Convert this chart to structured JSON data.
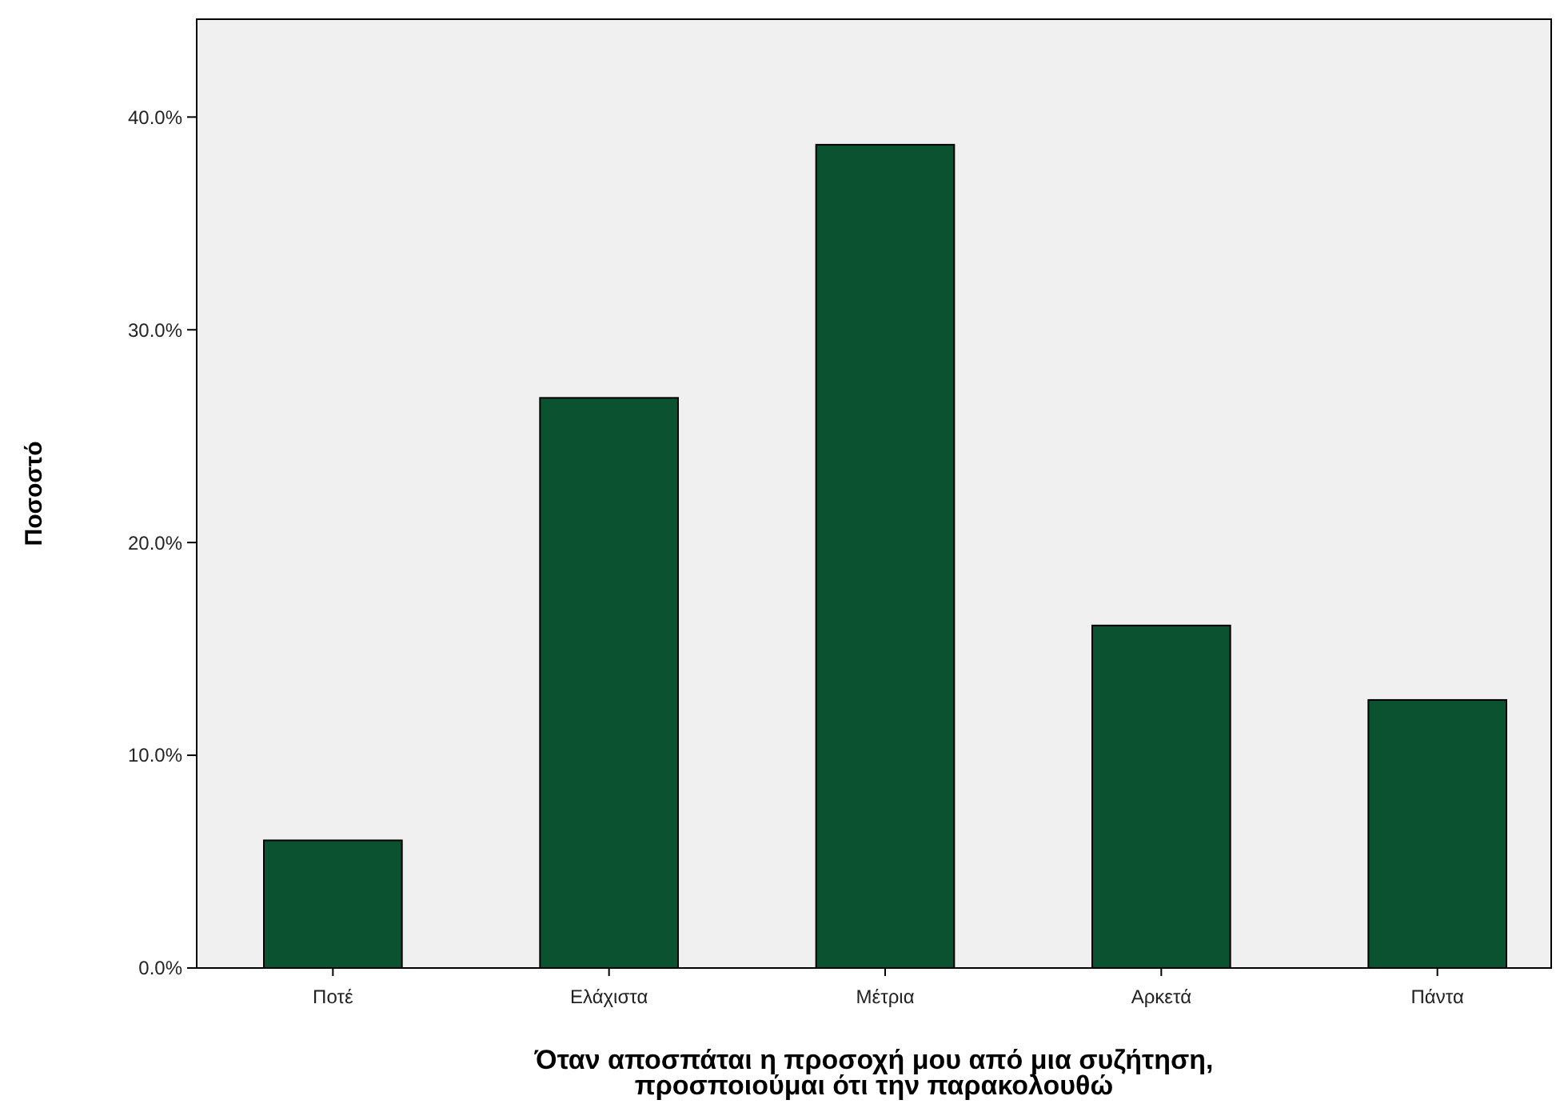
{
  "chart_data": {
    "type": "bar",
    "xlabel": "Όταν αποσπάται η προσοχή μου από μια συζήτηση,\nπροσποιούμαι ότι την παρακολουθώ",
    "ylabel": "Ποσοστό",
    "categories": [
      "Ποτέ",
      "Ελάχιστα",
      "Μέτρια",
      "Αρκετά",
      "Πάντα"
    ],
    "values": [
      6.0,
      26.8,
      38.7,
      16.1,
      12.6
    ],
    "color": "#0b5230",
    "ylim": [
      0,
      44.6
    ],
    "yticks": [
      {
        "value": 0,
        "label": "0.0%"
      },
      {
        "value": 10,
        "label": "10.0%"
      },
      {
        "value": 20,
        "label": "20.0%"
      },
      {
        "value": 30,
        "label": "30.0%"
      },
      {
        "value": 40,
        "label": "40.0%"
      }
    ],
    "grid": false
  }
}
